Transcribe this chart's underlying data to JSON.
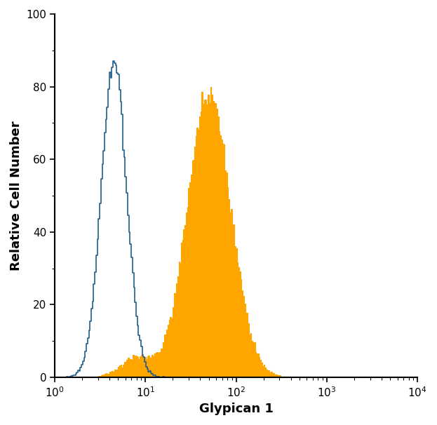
{
  "title": "",
  "xlabel": "Glypican 1",
  "ylabel": "Relative Cell Number",
  "xlim_log": [
    1,
    10000
  ],
  "ylim": [
    0,
    100
  ],
  "yticks": [
    0,
    20,
    40,
    60,
    80,
    100
  ],
  "xlabel_fontsize": 13,
  "ylabel_fontsize": 13,
  "xlabel_fontweight": "bold",
  "ylabel_fontweight": "bold",
  "background_color": "#ffffff",
  "blue_color": "#1f5f8b",
  "orange_color": "#FFA500",
  "blue_linewidth": 1.2,
  "orange_linewidth": 0.8,
  "blue_peak": 4.5,
  "blue_sigma": 0.32,
  "blue_max": 87,
  "orange_peak": 50,
  "orange_sigma": 0.55,
  "orange_max": 80,
  "n_bins": 300,
  "seed": 12345
}
